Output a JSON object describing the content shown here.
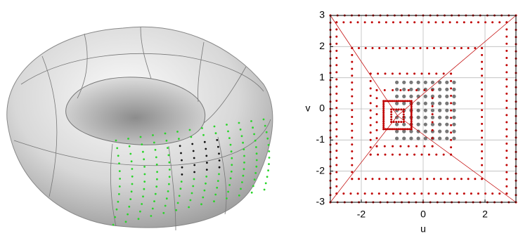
{
  "chart_data": {
    "type": "square-grid",
    "x_label": "u",
    "y_label": "v",
    "xlim": [
      -3,
      3
    ],
    "ylim": [
      -3,
      3
    ],
    "xticks": [
      -2,
      0,
      2
    ],
    "yticks": [
      -3,
      -2,
      -1,
      0,
      1,
      2,
      3
    ],
    "grid": true,
    "color": "#c00000",
    "squares": [
      {
        "center_u": 0,
        "center_v": 0,
        "half_size": 3,
        "dots_per_side": 27
      },
      {
        "center_u": -0.05,
        "center_v": 0.03,
        "half_size": 2.75,
        "dots_per_side": 25
      },
      {
        "center_u": -0.2,
        "center_v": -0.15,
        "half_size": 2.1,
        "dots_per_side": 20
      },
      {
        "center_u": -0.4,
        "center_v": -0.17,
        "half_size": 1.3,
        "dots_per_side": 12
      },
      {
        "center_u": -0.6,
        "center_v": -0.3,
        "half_size": 0.9,
        "dots_per_side": 8
      },
      {
        "center_u": -0.83,
        "center_v": -0.2,
        "half_size": 0.45,
        "dots_per_side": 16
      },
      {
        "center_u": -0.83,
        "center_v": -0.22,
        "half_size": 0.2,
        "dots_per_side": 6
      }
    ],
    "gray_grid": {
      "color": "#777777",
      "ulim": [
        -0.85,
        1.0
      ],
      "vlim": [
        -0.95,
        0.85
      ],
      "n": 9
    }
  }
}
